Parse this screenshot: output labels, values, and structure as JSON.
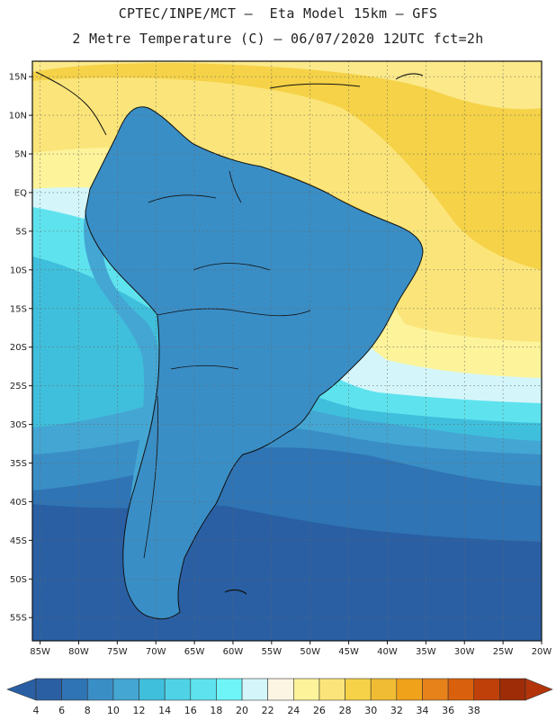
{
  "header": {
    "title_line1": "CPTEC/INPE/MCT –  Eta Model 15km – GFS",
    "title_line2": "2 Metre Temperature (C) – 06/07/2020 12UTC fct=2h"
  },
  "map": {
    "lat_range": [
      -58,
      17
    ],
    "lon_range": [
      -86,
      -20
    ],
    "lat_labels": [
      {
        "lat": 15,
        "text": "15N"
      },
      {
        "lat": 10,
        "text": "10N"
      },
      {
        "lat": 5,
        "text": "5N"
      },
      {
        "lat": 0,
        "text": "EQ"
      },
      {
        "lat": -5,
        "text": "5S"
      },
      {
        "lat": -10,
        "text": "10S"
      },
      {
        "lat": -15,
        "text": "15S"
      },
      {
        "lat": -20,
        "text": "20S"
      },
      {
        "lat": -25,
        "text": "25S"
      },
      {
        "lat": -30,
        "text": "30S"
      },
      {
        "lat": -35,
        "text": "35S"
      },
      {
        "lat": -40,
        "text": "40S"
      },
      {
        "lat": -45,
        "text": "45S"
      },
      {
        "lat": -50,
        "text": "50S"
      },
      {
        "lat": -55,
        "text": "55S"
      }
    ],
    "lon_labels": [
      {
        "lon": -85,
        "text": "85W"
      },
      {
        "lon": -80,
        "text": "80W"
      },
      {
        "lon": -75,
        "text": "75W"
      },
      {
        "lon": -70,
        "text": "70W"
      },
      {
        "lon": -65,
        "text": "65W"
      },
      {
        "lon": -60,
        "text": "60W"
      },
      {
        "lon": -55,
        "text": "55W"
      },
      {
        "lon": -50,
        "text": "50W"
      },
      {
        "lon": -45,
        "text": "45W"
      },
      {
        "lon": -40,
        "text": "40W"
      },
      {
        "lon": -35,
        "text": "35W"
      },
      {
        "lon": -30,
        "text": "30W"
      },
      {
        "lon": -25,
        "text": "25W"
      },
      {
        "lon": -20,
        "text": "20W"
      }
    ],
    "gridlines": "dotted",
    "colors": {
      "land_outline": "#111111",
      "ocean_warm": "#f5d247",
      "ocean_mid": "#fbe98a",
      "ocean_cool": "#5ee3ee",
      "ocean_cold": "#3fbfdc",
      "ocean_colder": "#3a8ec6",
      "ocean_coldest": "#2a5fa3"
    }
  },
  "colorbar": {
    "ticks": [
      "4",
      "6",
      "8",
      "10",
      "12",
      "14",
      "16",
      "18",
      "20",
      "22",
      "24",
      "26",
      "28",
      "30",
      "32",
      "34",
      "36",
      "38"
    ],
    "colors": [
      "#2a5fa3",
      "#2f74b4",
      "#3a8ec6",
      "#44a6d3",
      "#3fbfdc",
      "#4fd2e6",
      "#5ee3ee",
      "#6ff5f8",
      "#d4f6fa",
      "#fdf5e4",
      "#fcf39a",
      "#fbe57a",
      "#f5d247",
      "#efbc34",
      "#f0a21a",
      "#e7821b",
      "#d9610e",
      "#c0400a",
      "#9e2c06"
    ],
    "under_color": "#2a5fa3",
    "over_color": "#b4340a"
  }
}
